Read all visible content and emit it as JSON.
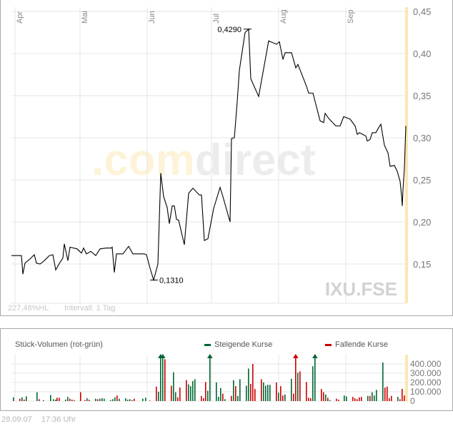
{
  "chart_data": [
    {
      "type": "line",
      "title": "IXU.FSE",
      "symbol": "IXU.FSE",
      "watermark": {
        "prefix": ".com",
        "suffix": "direct"
      },
      "x_labels": [
        "Apr",
        "Mai",
        "Jun",
        "Jul",
        "Aug",
        "Sep"
      ],
      "y_ticks": [
        "0,45",
        "0,40",
        "0,35",
        "0,30",
        "0,25",
        "0,20",
        "0,15"
      ],
      "y_tick_values": [
        0.45,
        0.4,
        0.35,
        0.3,
        0.25,
        0.2,
        0.15
      ],
      "ylim": [
        0.11,
        0.45
      ],
      "grid": true,
      "annotations": [
        {
          "label": "0,4290",
          "value": 0.429,
          "type": "max"
        },
        {
          "label": "0,1310",
          "value": 0.131,
          "type": "min"
        }
      ],
      "info": {
        "performance": "227,48%HL",
        "interval": "Intervall: 1 Tag"
      },
      "series": [
        {
          "name": "Kurs",
          "points": [
            [
              16,
              0.16
            ],
            [
              28,
              0.16
            ],
            [
              30,
              0.16
            ],
            [
              32,
              0.138
            ],
            [
              35,
              0.151
            ],
            [
              42,
              0.156
            ],
            [
              48,
              0.161
            ],
            [
              51,
              0.151
            ],
            [
              56,
              0.15
            ],
            [
              62,
              0.154
            ],
            [
              69,
              0.16
            ],
            [
              74,
              0.161
            ],
            [
              78,
              0.143
            ],
            [
              84,
              0.152
            ],
            [
              88,
              0.157
            ],
            [
              90,
              0.174
            ],
            [
              95,
              0.154
            ],
            [
              98,
              0.17
            ],
            [
              108,
              0.168
            ],
            [
              114,
              0.163
            ],
            [
              117,
              0.169
            ],
            [
              121,
              0.162
            ],
            [
              127,
              0.165
            ],
            [
              134,
              0.16
            ],
            [
              140,
              0.168
            ],
            [
              149,
              0.169
            ],
            [
              156,
              0.169
            ],
            [
              157,
              0.17
            ],
            [
              160,
              0.14
            ],
            [
              163,
              0.162
            ],
            [
              172,
              0.162
            ],
            [
              180,
              0.171
            ],
            [
              186,
              0.162
            ],
            [
              202,
              0.162
            ],
            [
              205,
              0.161
            ],
            [
              210,
              0.145
            ],
            [
              215,
              0.131
            ],
            [
              221,
              0.15
            ],
            [
              225,
              0.258
            ],
            [
              229,
              0.23
            ],
            [
              234,
              0.217
            ],
            [
              237,
              0.198
            ],
            [
              241,
              0.219
            ],
            [
              244,
              0.219
            ],
            [
              247,
              0.203
            ],
            [
              250,
              0.202
            ],
            [
              258,
              0.173
            ],
            [
              264,
              0.234
            ],
            [
              270,
              0.24
            ],
            [
              279,
              0.232
            ],
            [
              282,
              0.232
            ],
            [
              286,
              0.178
            ],
            [
              291,
              0.18
            ],
            [
              299,
              0.216
            ],
            [
              308,
              0.241
            ],
            [
              312,
              0.23
            ],
            [
              322,
              0.2
            ],
            [
              324,
              0.299
            ],
            [
              328,
              0.3
            ],
            [
              332,
              0.343
            ],
            [
              335,
              0.38
            ],
            [
              343,
              0.425
            ],
            [
              348,
              0.429
            ],
            [
              351,
              0.37
            ],
            [
              362,
              0.349
            ],
            [
              376,
              0.415
            ],
            [
              387,
              0.411
            ],
            [
              391,
              0.414
            ],
            [
              396,
              0.393
            ],
            [
              399,
              0.401
            ],
            [
              408,
              0.401
            ],
            [
              414,
              0.383
            ],
            [
              417,
              0.387
            ],
            [
              429,
              0.361
            ],
            [
              432,
              0.353
            ],
            [
              438,
              0.353
            ],
            [
              448,
              0.32
            ],
            [
              453,
              0.318
            ],
            [
              455,
              0.329
            ],
            [
              460,
              0.323
            ],
            [
              470,
              0.314
            ],
            [
              476,
              0.314
            ],
            [
              481,
              0.325
            ],
            [
              490,
              0.322
            ],
            [
              497,
              0.314
            ],
            [
              500,
              0.304
            ],
            [
              503,
              0.306
            ],
            [
              512,
              0.302
            ],
            [
              514,
              0.296
            ],
            [
              518,
              0.298
            ],
            [
              521,
              0.306
            ],
            [
              526,
              0.306
            ],
            [
              530,
              0.312
            ],
            [
              533,
              0.316
            ],
            [
              538,
              0.291
            ],
            [
              543,
              0.282
            ],
            [
              546,
              0.266
            ],
            [
              552,
              0.267
            ],
            [
              556,
              0.26
            ],
            [
              560,
              0.248
            ],
            [
              562,
              0.231
            ],
            [
              563,
              0.219
            ],
            [
              564,
              0.238
            ],
            [
              566,
              0.264
            ],
            [
              568,
              0.314
            ]
          ]
        }
      ]
    },
    {
      "type": "bar",
      "title": "Stück-Volumen (rot-grün)",
      "ylabel": "Stück-Volumen",
      "y_ticks": [
        "400.000",
        "300.000",
        "200.000",
        "100.000",
        "0"
      ],
      "y_tick_values": [
        400000,
        300000,
        200000,
        100000,
        0
      ],
      "ylim": [
        0,
        480000
      ],
      "legend": [
        {
          "label": "Steigende Kurse",
          "color": "#006633"
        },
        {
          "label": "Fallende Kurse",
          "color": "#cc0000"
        }
      ],
      "series": [
        {
          "name": "Volumen",
          "bars": [
            [
              18,
              40000,
              "g"
            ],
            [
              27,
              25000,
              "r"
            ],
            [
              30,
              40000,
              "g"
            ],
            [
              33,
              15000,
              "r"
            ],
            [
              36,
              50000,
              "g"
            ],
            [
              51,
              95000,
              "g"
            ],
            [
              54,
              20000,
              "r"
            ],
            [
              60,
              10000,
              "g"
            ],
            [
              70,
              65000,
              "g"
            ],
            [
              74,
              20000,
              "g"
            ],
            [
              77,
              15000,
              "g"
            ],
            [
              79,
              35000,
              "r"
            ],
            [
              82,
              35000,
              "r"
            ],
            [
              91,
              15000,
              "g"
            ],
            [
              94,
              45000,
              "g"
            ],
            [
              97,
              25000,
              "r"
            ],
            [
              100,
              15000,
              "r"
            ],
            [
              103,
              10000,
              "g"
            ],
            [
              112,
              95000,
              "r"
            ],
            [
              118,
              10000,
              "r"
            ],
            [
              121,
              30000,
              "g"
            ],
            [
              124,
              15000,
              "r"
            ],
            [
              133,
              25000,
              "g"
            ],
            [
              136,
              20000,
              "r"
            ],
            [
              139,
              25000,
              "g"
            ],
            [
              142,
              30000,
              "g"
            ],
            [
              145,
              25000,
              "g"
            ],
            [
              154,
              10000,
              "g"
            ],
            [
              157,
              20000,
              "g"
            ],
            [
              160,
              40000,
              "g"
            ],
            [
              163,
              60000,
              "r"
            ],
            [
              166,
              25000,
              "g"
            ],
            [
              175,
              30000,
              "g"
            ],
            [
              178,
              15000,
              "g"
            ],
            [
              181,
              20000,
              "g"
            ],
            [
              184,
              10000,
              "r"
            ],
            [
              187,
              25000,
              "r"
            ],
            [
              199,
              25000,
              "g"
            ],
            [
              203,
              35000,
              "g"
            ],
            [
              209,
              5000,
              "r"
            ],
            [
              218,
              155000,
              "r"
            ],
            [
              221,
              100000,
              "g"
            ],
            [
              224,
              480000,
              "g"
            ],
            [
              227,
              480000,
              "g"
            ],
            [
              230,
              450000,
              "r"
            ],
            [
              239,
              165000,
              "r"
            ],
            [
              242,
              310000,
              "g"
            ],
            [
              245,
              95000,
              "g"
            ],
            [
              248,
              40000,
              "r"
            ],
            [
              251,
              145000,
              "r"
            ],
            [
              260,
              225000,
              "r"
            ],
            [
              263,
              180000,
              "g"
            ],
            [
              266,
              160000,
              "g"
            ],
            [
              269,
              215000,
              "g"
            ],
            [
              272,
              235000,
              "g"
            ],
            [
              281,
              55000,
              "r"
            ],
            [
              284,
              30000,
              "r"
            ],
            [
              287,
              205000,
              "r"
            ],
            [
              290,
              110000,
              "g"
            ],
            [
              293,
              480000,
              "g"
            ],
            [
              302,
              200000,
              "g"
            ],
            [
              305,
              45000,
              "g"
            ],
            [
              308,
              140000,
              "g"
            ],
            [
              311,
              80000,
              "r"
            ],
            [
              314,
              20000,
              "g"
            ],
            [
              323,
              55000,
              "r"
            ],
            [
              326,
              225000,
              "g"
            ],
            [
              329,
              160000,
              "r"
            ],
            [
              332,
              55000,
              "g"
            ],
            [
              335,
              235000,
              "g"
            ],
            [
              344,
              165000,
              "g"
            ],
            [
              347,
              350000,
              "g"
            ],
            [
              350,
              185000,
              "r"
            ],
            [
              353,
              400000,
              "r"
            ],
            [
              356,
              130000,
              "r"
            ],
            [
              365,
              235000,
              "r"
            ],
            [
              368,
              200000,
              "g"
            ],
            [
              371,
              165000,
              "g"
            ],
            [
              374,
              175000,
              "g"
            ],
            [
              377,
              175000,
              "g"
            ],
            [
              386,
              200000,
              "r"
            ],
            [
              389,
              90000,
              "g"
            ],
            [
              392,
              160000,
              "r"
            ],
            [
              395,
              60000,
              "r"
            ],
            [
              398,
              70000,
              "g"
            ],
            [
              407,
              240000,
              "g"
            ],
            [
              410,
              80000,
              "r"
            ],
            [
              413,
              480000,
              "r"
            ],
            [
              416,
              305000,
              "g"
            ],
            [
              419,
              320000,
              "r"
            ],
            [
              428,
              205000,
              "r"
            ],
            [
              431,
              35000,
              "r"
            ],
            [
              434,
              30000,
              "r"
            ],
            [
              437,
              375000,
              "g"
            ],
            [
              440,
              480000,
              "g"
            ],
            [
              449,
              130000,
              "r"
            ],
            [
              452,
              95000,
              "r"
            ],
            [
              455,
              70000,
              "g"
            ],
            [
              458,
              35000,
              "r"
            ],
            [
              461,
              10000,
              "g"
            ],
            [
              470,
              25000,
              "r"
            ],
            [
              473,
              15000,
              "r"
            ],
            [
              481,
              60000,
              "g"
            ],
            [
              484,
              50000,
              "g"
            ],
            [
              493,
              45000,
              "r"
            ],
            [
              496,
              30000,
              "r"
            ],
            [
              499,
              20000,
              "r"
            ],
            [
              502,
              40000,
              "r"
            ],
            [
              505,
              45000,
              "r"
            ],
            [
              514,
              55000,
              "g"
            ],
            [
              517,
              55000,
              "r"
            ],
            [
              520,
              95000,
              "g"
            ],
            [
              523,
              60000,
              "g"
            ],
            [
              526,
              120000,
              "g"
            ],
            [
              535,
              415000,
              "g"
            ],
            [
              538,
              145000,
              "r"
            ],
            [
              541,
              155000,
              "r"
            ],
            [
              544,
              30000,
              "r"
            ],
            [
              547,
              55000,
              "r"
            ],
            [
              556,
              45000,
              "g"
            ],
            [
              559,
              20000,
              "r"
            ],
            [
              562,
              130000,
              "r"
            ],
            [
              565,
              60000,
              "r"
            ]
          ]
        }
      ]
    }
  ],
  "footer": {
    "date": "28.09.07",
    "time": "17:36 Uhr"
  }
}
